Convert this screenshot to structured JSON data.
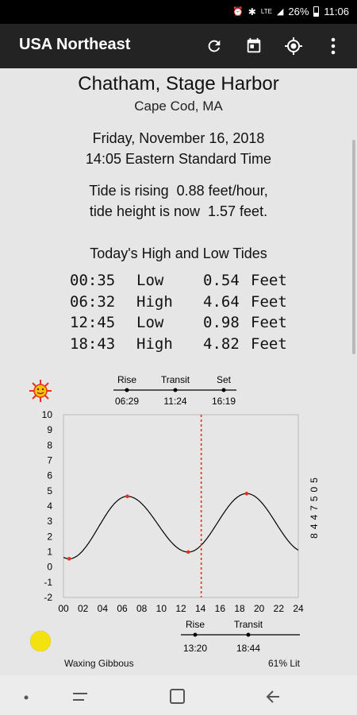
{
  "status": {
    "network": "LTE",
    "battery": "26%",
    "clock": "11:06"
  },
  "app": {
    "title": "USA Northeast"
  },
  "icons": {
    "refresh": "refresh-icon",
    "calendar": "calendar-icon",
    "location": "gps-icon",
    "more": "more-vert-icon"
  },
  "station": {
    "name": "Chatham, Stage Harbor",
    "region": "Cape Cod, MA"
  },
  "datetime": {
    "date": "Friday, November 16, 2018",
    "time": "14:05 Eastern Standard Time"
  },
  "tide_status": {
    "rate": "Tide is rising  0.88 feet/hour,",
    "height": "tide height is now  1.57 feet."
  },
  "tides": {
    "title": "Today's High and Low Tides",
    "rows": [
      {
        "time": "00:35",
        "type": "Low",
        "height": "0.54",
        "unit": "Feet"
      },
      {
        "time": "06:32",
        "type": "High",
        "height": "4.64",
        "unit": "Feet"
      },
      {
        "time": "12:45",
        "type": "Low",
        "height": "0.98",
        "unit": "Feet"
      },
      {
        "time": "18:43",
        "type": "High",
        "height": "4.82",
        "unit": "Feet"
      }
    ]
  },
  "sun": {
    "rise_label": "Rise",
    "transit_label": "Transit",
    "set_label": "Set",
    "rise": "06:29",
    "transit": "11:24",
    "set": "16:19"
  },
  "moon": {
    "rise_label": "Rise",
    "transit_label": "Transit",
    "rise": "13:20",
    "transit": "18:44",
    "phase": "Waxing Gibbous",
    "lit": "61% Lit"
  },
  "chart_data": {
    "type": "line",
    "station_id": "8447505",
    "xlim": [
      0,
      24
    ],
    "ylim": [
      -2,
      10
    ],
    "x_ticks": [
      "00",
      "02",
      "04",
      "06",
      "08",
      "10",
      "12",
      "14",
      "16",
      "18",
      "20",
      "22",
      "24"
    ],
    "y_ticks": [
      "10",
      "9",
      "8",
      "7",
      "6",
      "5",
      "4",
      "3",
      "2",
      "1",
      "0",
      "-1",
      "-2"
    ],
    "extrema": [
      {
        "x": 0.58,
        "y": 0.54
      },
      {
        "x": 6.53,
        "y": 4.64
      },
      {
        "x": 12.75,
        "y": 0.98
      },
      {
        "x": 18.72,
        "y": 4.82
      }
    ],
    "current_time": 14.08,
    "colors": {
      "line": "#000000",
      "marker": "#e8301c",
      "now": "#e8301c",
      "grid": "#bbbbbb"
    }
  }
}
